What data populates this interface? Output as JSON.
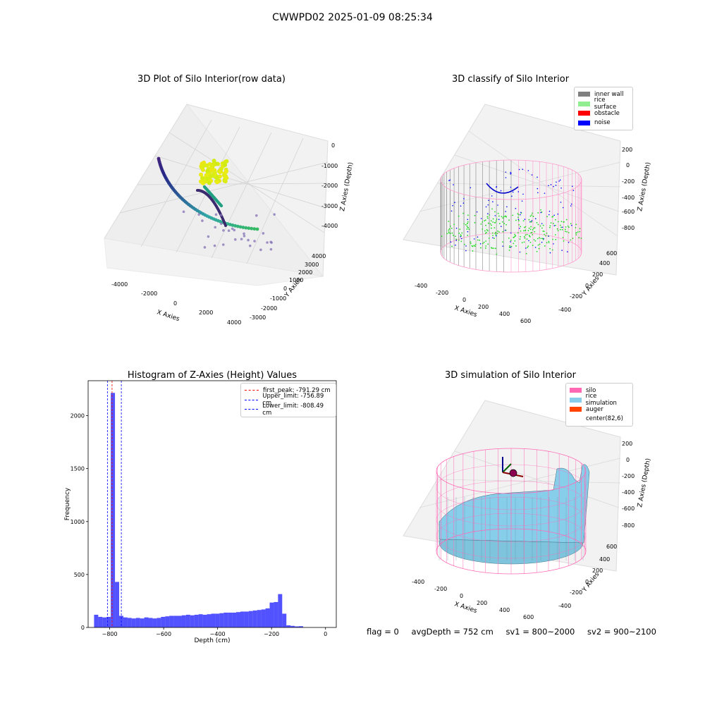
{
  "suptitle": "CWWPD02 2025-01-09 08:25:34",
  "panel1": {
    "title": "3D Plot of Silo Interior(row data)",
    "xlabel": "X Axies",
    "ylabel": "Y Axies",
    "zlabel": "Z Axies (Depth)",
    "xticks": [
      "-4000",
      "-2000",
      "0",
      "2000",
      "4000"
    ],
    "yticks": [
      "-3000",
      "-2000",
      "-1000",
      "0",
      "1000",
      "2000",
      "3000",
      "4000"
    ],
    "zticks": [
      "0",
      "-1000",
      "-2000",
      "-3000",
      "-4000"
    ]
  },
  "panel2": {
    "title": "3D classify of Silo Interior",
    "xlabel": "X Axies",
    "ylabel": "Y Axies",
    "zlabel": "Z Axies (Depth)",
    "xticks": [
      "-400",
      "-200",
      "0",
      "200",
      "400",
      "600"
    ],
    "yticks": [
      "-400",
      "-200",
      "0",
      "200",
      "400",
      "600"
    ],
    "zticks": [
      "200",
      "0",
      "-200",
      "-400",
      "-600",
      "-800"
    ],
    "legend": [
      {
        "label": "inner wall",
        "color": "#808080"
      },
      {
        "label": "rice surface",
        "color": "#90ee90"
      },
      {
        "label": "obstacle",
        "color": "#ff0000"
      },
      {
        "label": "noise",
        "color": "#0000ff"
      }
    ]
  },
  "panel4": {
    "title": "3D simulation of Silo Interior",
    "xlabel": "X Axies",
    "ylabel": "Y Axies",
    "zlabel": "Z Axies (Depth)",
    "xticks": [
      "-400",
      "-200",
      "0",
      "200",
      "400",
      "600"
    ],
    "yticks": [
      "-400",
      "-200",
      "0",
      "200",
      "400",
      "600"
    ],
    "zticks": [
      "200",
      "0",
      "-200",
      "-400",
      "-600",
      "-800"
    ],
    "legend": [
      {
        "label": "silo",
        "color": "#ff69b4"
      },
      {
        "label": "rice simulation",
        "color": "#87ceeb"
      },
      {
        "label": "auger",
        "color": "#ff4500"
      },
      {
        "label": "center(82,6)",
        "color": ""
      }
    ]
  },
  "stats": {
    "flag": "flag = 0",
    "avg": "avgDepth = 752 cm",
    "sv1": "sv1 = 800~2000",
    "sv2": "sv2 = 900~2100"
  },
  "chart_data": [
    {
      "type": "histogram",
      "title": "Histogram of Z-Axies (Height) Values",
      "xlabel": "Depth (cm)",
      "ylabel": "Frequency",
      "xlim": [
        -880,
        40
      ],
      "ylim": [
        0,
        2330
      ],
      "xticks": [
        -800,
        -600,
        -400,
        -200,
        0
      ],
      "yticks": [
        0,
        500,
        1000,
        1500,
        2000
      ],
      "bar_color": "#0000ff",
      "bin_width": 15.5,
      "bin_start": -858,
      "values": [
        120,
        100,
        95,
        100,
        2215,
        430,
        110,
        95,
        90,
        85,
        90,
        85,
        95,
        90,
        85,
        90,
        100,
        105,
        110,
        110,
        110,
        115,
        120,
        115,
        120,
        125,
        120,
        125,
        130,
        130,
        135,
        140,
        140,
        140,
        145,
        150,
        150,
        155,
        160,
        165,
        170,
        180,
        235,
        240,
        315,
        130,
        20,
        15,
        10,
        12
      ],
      "vlines": [
        {
          "label": "first_peak: -791.29 cm",
          "x": -791.29,
          "color": "#ff0000"
        },
        {
          "label": "Upper_limit: -756.89 cm",
          "x": -756.89,
          "color": "#0000ff"
        },
        {
          "label": "Lower_limit: -808.49 cm",
          "x": -808.49,
          "color": "#0000ff"
        }
      ],
      "legend_placement": "upper right"
    }
  ]
}
